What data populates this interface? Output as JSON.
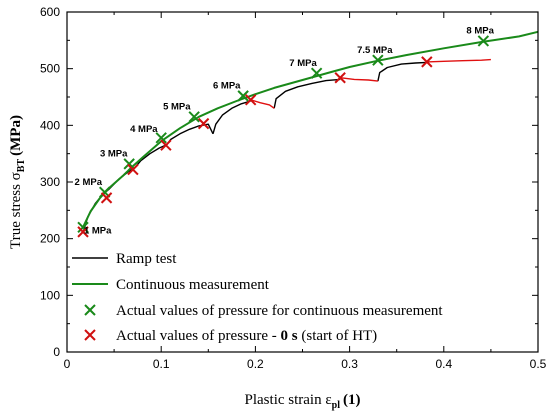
{
  "chart_data": {
    "type": "line",
    "xlabel": {
      "main": "Plastic strain ε",
      "sub": "pl",
      "unit": "(1)"
    },
    "ylabel": {
      "main": "True stress σ",
      "sub": "BT",
      "unit": "(MPa)"
    },
    "xlim": [
      0,
      0.5
    ],
    "ylim": [
      0,
      600
    ],
    "xticks": [
      "0",
      "0.1",
      "0.2",
      "0.3",
      "0.4",
      "0.5"
    ],
    "yticks": [
      "0",
      "100",
      "200",
      "300",
      "400",
      "500",
      "600"
    ],
    "legend_position": "bottom-left inside plot",
    "colors": {
      "ramp": "#000000",
      "continuous": "#1a8a1a",
      "green_marker": "#1a8a1a",
      "red_marker": "#d01010",
      "red_curve": "#e01010"
    },
    "series": [
      {
        "name": "Ramp test",
        "segments": [
          [
            [
              0.017,
              210
            ],
            [
              0.022,
              238
            ],
            [
              0.03,
              262
            ],
            [
              0.038,
              278
            ],
            [
              0.045,
              288
            ],
            [
              0.055,
              305
            ],
            [
              0.065,
              318
            ],
            [
              0.072,
              325
            ]
          ],
          [
            [
              0.072,
              325
            ],
            [
              0.078,
              337
            ],
            [
              0.088,
              350
            ],
            [
              0.098,
              360
            ],
            [
              0.106,
              366
            ]
          ],
          [
            [
              0.106,
              366
            ],
            [
              0.11,
              375
            ],
            [
              0.12,
              385
            ],
            [
              0.13,
              393
            ],
            [
              0.14,
              399
            ],
            [
              0.15,
              402
            ],
            [
              0.155,
              385
            ]
          ],
          [
            [
              0.155,
              385
            ],
            [
              0.158,
              402
            ],
            [
              0.165,
              418
            ],
            [
              0.175,
              430
            ],
            [
              0.185,
              438
            ],
            [
              0.195,
              443
            ]
          ],
          [
            [
              0.22,
              430
            ],
            [
              0.222,
              447
            ],
            [
              0.232,
              460
            ],
            [
              0.245,
              468
            ],
            [
              0.26,
              474
            ],
            [
              0.275,
              479
            ],
            [
              0.29,
              481
            ]
          ],
          [
            [
              0.33,
              478
            ],
            [
              0.332,
              493
            ],
            [
              0.34,
              502
            ],
            [
              0.355,
              508
            ],
            [
              0.37,
              510
            ],
            [
              0.382,
              511
            ]
          ]
        ]
      },
      {
        "name": "Continuous measurement",
        "points": [
          [
            0.017,
            220
          ],
          [
            0.025,
            248
          ],
          [
            0.035,
            272
          ],
          [
            0.045,
            290
          ],
          [
            0.06,
            312
          ],
          [
            0.07,
            328
          ],
          [
            0.08,
            343
          ],
          [
            0.1,
            372
          ],
          [
            0.12,
            395
          ],
          [
            0.14,
            415
          ],
          [
            0.16,
            430
          ],
          [
            0.18,
            443
          ],
          [
            0.2,
            455
          ],
          [
            0.22,
            466
          ],
          [
            0.25,
            480
          ],
          [
            0.28,
            494
          ],
          [
            0.3,
            503
          ],
          [
            0.33,
            514
          ],
          [
            0.36,
            524
          ],
          [
            0.4,
            536
          ],
          [
            0.44,
            547
          ],
          [
            0.48,
            557
          ],
          [
            0.5,
            565
          ]
        ]
      },
      {
        "name": "Actual values of pressure for continuous measurement",
        "marker": "x",
        "points": [
          [
            0.017,
            220
          ],
          [
            0.04,
            282
          ],
          [
            0.066,
            332
          ],
          [
            0.1,
            378
          ],
          [
            0.135,
            415
          ],
          [
            0.187,
            452
          ],
          [
            0.265,
            492
          ],
          [
            0.33,
            515
          ],
          [
            0.442,
            549
          ]
        ]
      },
      {
        "name_parts": [
          "Actual values of pressure - ",
          "0 s",
          " (start of HT)"
        ],
        "marker": "x",
        "points": [
          [
            0.017,
            212
          ],
          [
            0.042,
            272
          ],
          [
            0.07,
            322
          ],
          [
            0.105,
            365
          ],
          [
            0.145,
            403
          ],
          [
            0.195,
            445
          ],
          [
            0.29,
            484
          ],
          [
            0.382,
            512
          ]
        ],
        "segments": [
          [
            [
              0.195,
              445
            ],
            [
              0.205,
              440
            ],
            [
              0.215,
              436
            ],
            [
              0.22,
              430
            ]
          ],
          [
            [
              0.29,
              484
            ],
            [
              0.305,
              481
            ],
            [
              0.32,
              480
            ],
            [
              0.33,
              478
            ]
          ],
          [
            [
              0.382,
              512
            ],
            [
              0.4,
              513
            ],
            [
              0.42,
              514
            ],
            [
              0.44,
              515
            ],
            [
              0.45,
              516
            ]
          ]
        ]
      }
    ],
    "annotations": [
      {
        "text": "1 MPa",
        "x": 0.018,
        "y": 209
      },
      {
        "text": "2 MPa",
        "x": 0.008,
        "y": 295
      },
      {
        "text": "3 MPa",
        "x": 0.035,
        "y": 345
      },
      {
        "text": "4 MPa",
        "x": 0.067,
        "y": 388
      },
      {
        "text": "5 MPa",
        "x": 0.102,
        "y": 428
      },
      {
        "text": "6 MPa",
        "x": 0.155,
        "y": 465
      },
      {
        "text": "7 MPa",
        "x": 0.236,
        "y": 505
      },
      {
        "text": "7.5 MPa",
        "x": 0.308,
        "y": 528
      },
      {
        "text": "8 MPa",
        "x": 0.424,
        "y": 562
      }
    ]
  }
}
